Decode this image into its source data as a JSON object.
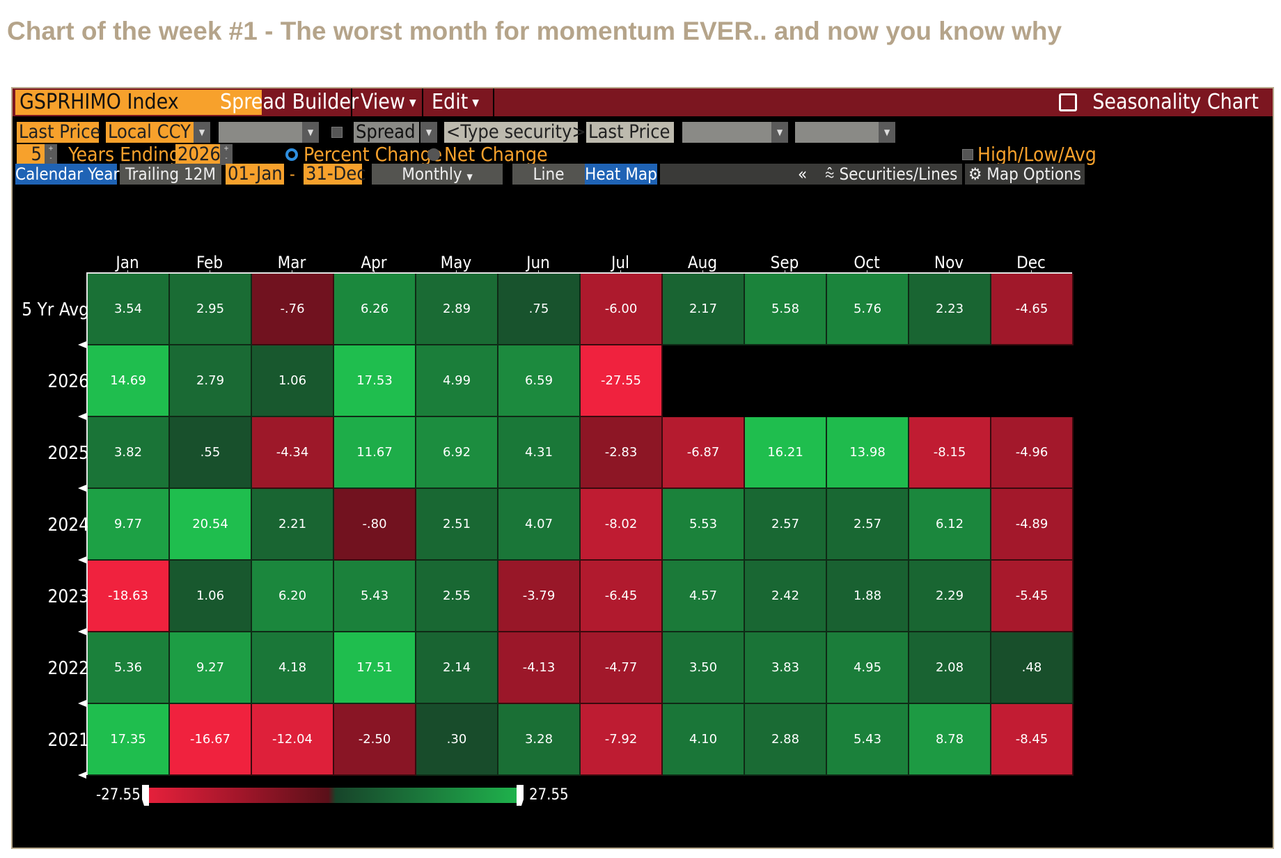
{
  "headline": "Chart of the week #1 - The worst month for momentum EVER.. and now you know why",
  "menubar": {
    "ticker": "GSPRHIMO Index",
    "spread_builder": "Spread Builder",
    "view": "View",
    "edit": "Edit",
    "title": "Seasonality Chart"
  },
  "controls": {
    "row1": {
      "last_price": "Last Price",
      "currency": "Local CCY",
      "spread": "Spread",
      "type_security": "<Type security>",
      "last_price_2": "Last Price"
    },
    "row2": {
      "years": "5",
      "years_ending_label": "Years Ending",
      "end_year": "2026",
      "percent_change": "Percent Change",
      "net_change": "Net Change",
      "high_low_avg": "High/Low/Avg"
    },
    "row3": {
      "calendar_year": "Calendar Year",
      "trailing_12m": "Trailing 12M",
      "start_date": "01-Jan",
      "dash": "-",
      "end_date": "31-Dec",
      "monthly": "Monthly",
      "line": "Line",
      "heat_map": "Heat Map",
      "collapse": "«",
      "securities_lines": "Securities/Lines",
      "map_options": "Map Options"
    }
  },
  "icons": {
    "external_link": "external-link-icon",
    "chart_lines": "chart-lines-icon",
    "gear": "gear-icon",
    "dropdown": "caret-down-icon"
  },
  "colors": {
    "menubar": "#7c1620",
    "orange_field": "#f7a12c",
    "tab_blue": "#1f63b5",
    "headline": "#b5a48a",
    "scale_min": "#e8213c",
    "scale_max": "#1fb34c"
  },
  "chart_data": {
    "type": "heatmap",
    "x": [
      "Jan",
      "Feb",
      "Mar",
      "Apr",
      "May",
      "Jun",
      "Jul",
      "Aug",
      "Sep",
      "Oct",
      "Nov",
      "Dec"
    ],
    "y": [
      "5 Yr Avg",
      "2026",
      "2025",
      "2024",
      "2023",
      "2022",
      "2021"
    ],
    "values": [
      [
        "3.54",
        "2.95",
        "-.76",
        "6.26",
        "2.89",
        ".75",
        "-6.00",
        "2.17",
        "5.58",
        "5.76",
        "2.23",
        "-4.65"
      ],
      [
        "14.69",
        "2.79",
        "1.06",
        "17.53",
        "4.99",
        "6.59",
        "-27.55",
        null,
        null,
        null,
        null,
        null
      ],
      [
        "3.82",
        ".55",
        "-4.34",
        "11.67",
        "6.92",
        "4.31",
        "-2.83",
        "-6.87",
        "16.21",
        "13.98",
        "-8.15",
        "-4.96"
      ],
      [
        "9.77",
        "20.54",
        "2.21",
        "-.80",
        "2.51",
        "4.07",
        "-8.02",
        "5.53",
        "2.57",
        "2.57",
        "6.12",
        "-4.89"
      ],
      [
        "-18.63",
        "1.06",
        "6.20",
        "5.43",
        "2.55",
        "-3.79",
        "-6.45",
        "4.57",
        "2.42",
        "1.88",
        "2.29",
        "-5.45"
      ],
      [
        "5.36",
        "9.27",
        "4.18",
        "17.51",
        "2.14",
        "-4.13",
        "-4.77",
        "3.50",
        "3.83",
        "4.95",
        "2.08",
        ".48"
      ],
      [
        "17.35",
        "-16.67",
        "-12.04",
        "-2.50",
        ".30",
        "3.28",
        "-7.92",
        "4.10",
        "2.88",
        "5.43",
        "8.78",
        "-8.45"
      ]
    ],
    "scale": {
      "min": -27.55,
      "max": 27.55,
      "min_label": "-27.55",
      "max_label": "27.55"
    }
  }
}
